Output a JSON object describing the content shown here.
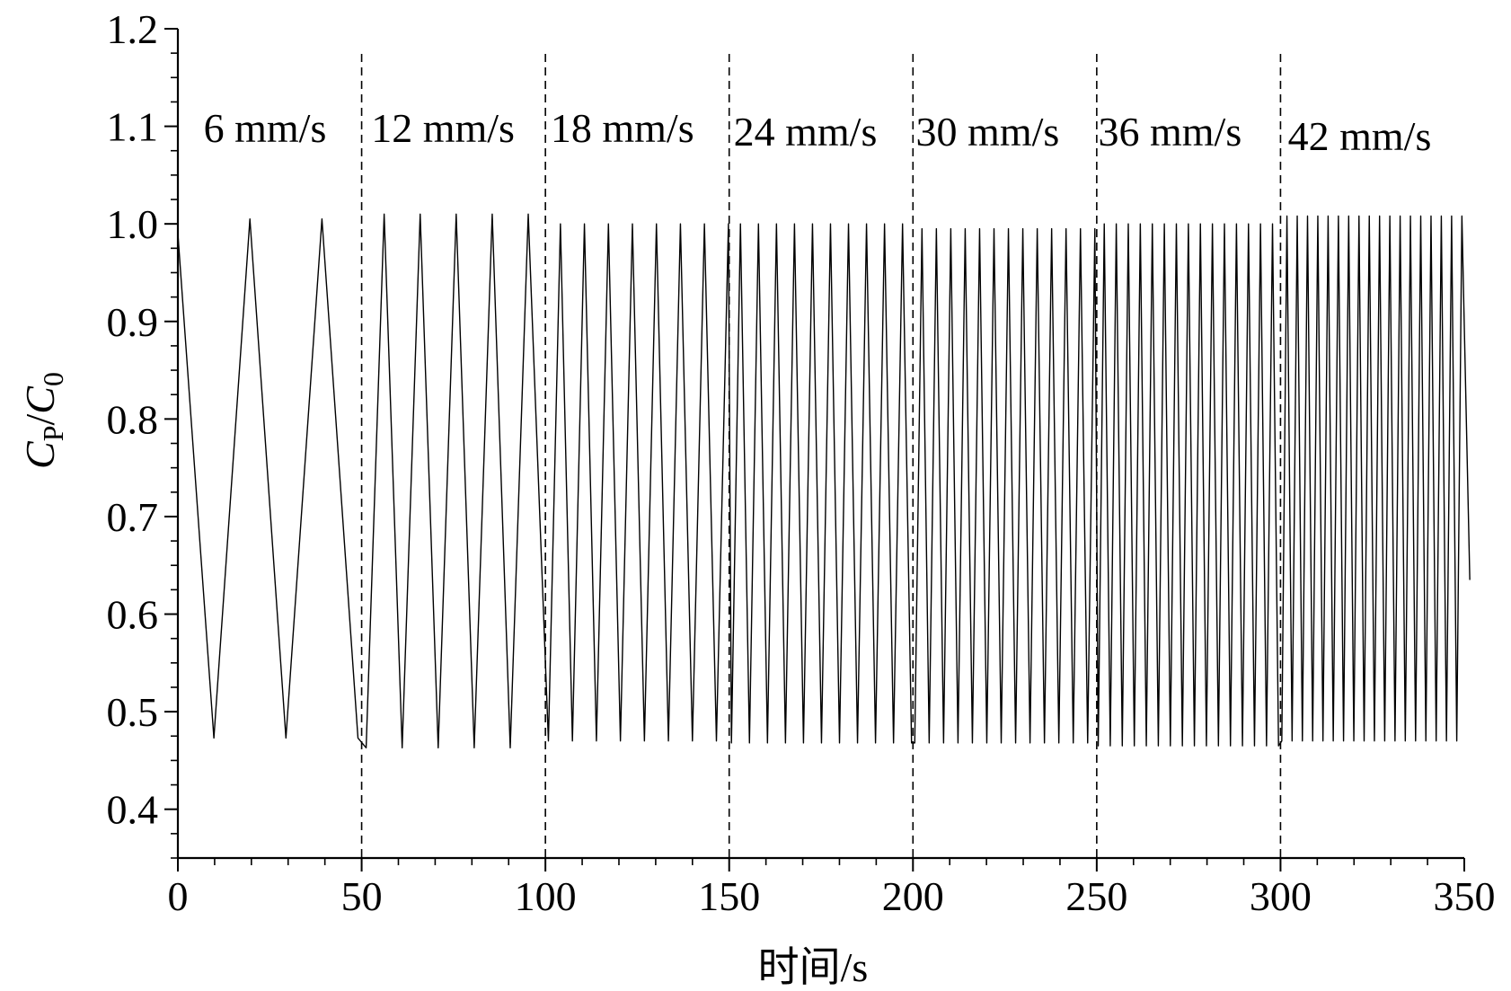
{
  "chart_data": {
    "type": "line",
    "title": "",
    "xlabel": "时间/s",
    "ylabel": {
      "main": "C",
      "main_sub": "P",
      "sep": "/",
      "denom": "C",
      "denom_sub": "0"
    },
    "xlim": [
      0,
      350
    ],
    "ylim": [
      0.35,
      1.2
    ],
    "x_ticks": [
      0,
      50,
      100,
      150,
      200,
      250,
      300,
      350
    ],
    "x_tick_labels": [
      "0",
      "50",
      "100",
      "150",
      "200",
      "250",
      "300",
      "350"
    ],
    "y_ticks": [
      0.4,
      0.5,
      0.6,
      0.7,
      0.8,
      0.9,
      1.0,
      1.1,
      1.2
    ],
    "y_tick_labels": [
      "0.4",
      "0.5",
      "0.6",
      "0.7",
      "0.8",
      "0.9",
      "1.0",
      "1.1",
      "1.2"
    ],
    "grid": false,
    "legend": "none",
    "line_color": "#000000",
    "region_boundaries": [
      50,
      100,
      150,
      200,
      250,
      300
    ],
    "regions": [
      {
        "label": "6 mm/s",
        "x_start": 0,
        "x_end": 50,
        "period": 19.6,
        "min": 0.473,
        "max": 1.005
      },
      {
        "label": "12 mm/s",
        "x_start": 50,
        "x_end": 100,
        "period": 9.8,
        "min": 0.463,
        "max": 1.01
      },
      {
        "label": "18 mm/s",
        "x_start": 100,
        "x_end": 150,
        "period": 6.53,
        "min": 0.47,
        "max": 1.0
      },
      {
        "label": "24 mm/s",
        "x_start": 150,
        "x_end": 200,
        "period": 4.9,
        "min": 0.468,
        "max": 1.0
      },
      {
        "label": "30 mm/s",
        "x_start": 200,
        "x_end": 250,
        "period": 3.92,
        "min": 0.468,
        "max": 0.995
      },
      {
        "label": "36 mm/s",
        "x_start": 250,
        "x_end": 300,
        "period": 3.27,
        "min": 0.465,
        "max": 1.0
      },
      {
        "label": "42 mm/s",
        "x_start": 300,
        "x_end": 350,
        "period": 2.8,
        "min": 0.47,
        "max": 1.008
      }
    ],
    "series": [
      {
        "start_value": 0.99,
        "end_x": 351.5,
        "end_value": 0.635
      }
    ]
  }
}
